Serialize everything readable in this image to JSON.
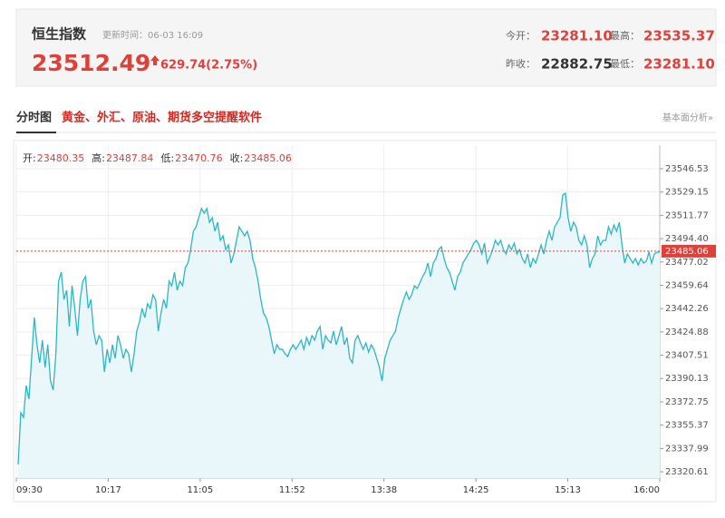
{
  "quote": {
    "name": "恒生指数",
    "update_time": "更新时间：06-03 16:09",
    "price": "23512.49",
    "change": "629.74(2.75%)",
    "open_label": "今开：",
    "open": "23281.10",
    "high_label": "最高：",
    "high": "23535.37",
    "prev_close_label": "昨收：",
    "prev_close": "22882.75",
    "low_label": "最低：",
    "low": "23281.10"
  },
  "section": {
    "title": "分时图",
    "promo": "黄金、外汇、原油、期货多空提醒软件",
    "link": "基本面分析»"
  },
  "chart_data": {
    "type": "line",
    "color": "#2bb7c6",
    "fill": "#eaf7fa",
    "grid": true,
    "ohlc": [
      {
        "label": "开:",
        "value": 23480.35
      },
      {
        "label": "高:",
        "value": 23487.84
      },
      {
        "label": "低:",
        "value": 23470.76
      },
      {
        "label": "收:",
        "value": 23485.06
      }
    ],
    "ref_color": "#e0403a",
    "x_labels": [
      "09:30",
      "10:17",
      "11:05",
      "11:52",
      "13:38",
      "14:25",
      "15:13",
      "16:00"
    ],
    "ylim": [
      23315.9,
      23564.1
    ],
    "yticks": [
      23546.53,
      23529.15,
      23511.77,
      {
        "value": 23494.4,
        "label": "23494.40"
      },
      23477.02,
      23459.64,
      23442.26,
      23424.88,
      23407.51,
      23390.13,
      23372.75,
      23355.37,
      23337.99,
      23320.61
    ],
    "values": [
      23326.1,
      23364.6,
      23361.2,
      23384.9,
      23374.8,
      23405.2,
      23435.6,
      23415.3,
      23401.8,
      23418.7,
      23398.4,
      23415.3,
      23388.3,
      23381.5,
      23408.6,
      23462.7,
      23469.4,
      23449.1,
      23455.9,
      23428.9,
      23459.3,
      23442.4,
      23422.1,
      23449.1,
      23462.7,
      23466.1,
      23442.4,
      23449.1,
      23425.5,
      23415.3,
      23422.1,
      23418.7,
      23395.0,
      23411.9,
      23401.8,
      23415.3,
      23405.2,
      23422.1,
      23415.3,
      23405.2,
      23411.9,
      23408.6,
      23395.0,
      23408.6,
      23425.5,
      23432.2,
      23442.4,
      23435.6,
      23445.8,
      23442.4,
      23452.5,
      23449.1,
      23425.5,
      23439.0,
      23449.1,
      23442.4,
      23462.7,
      23459.3,
      23469.4,
      23455.9,
      23462.7,
      23459.3,
      23472.8,
      23476.2,
      23486.3,
      23499.9,
      23503.2,
      23510.0,
      23516.8,
      23513.4,
      23516.8,
      23506.6,
      23510.0,
      23499.9,
      23506.6,
      23493.1,
      23496.5,
      23486.3,
      23489.7,
      23476.2,
      23483.0,
      23493.1,
      23503.2,
      23499.9,
      23496.5,
      23499.9,
      23493.1,
      23479.6,
      23472.8,
      23462.7,
      23449.1,
      23439.0,
      23435.6,
      23428.9,
      23418.7,
      23408.6,
      23415.3,
      23411.9,
      23411.9,
      23408.6,
      23406.5,
      23411.9,
      23415.3,
      23411.9,
      23415.3,
      23418.7,
      23411.9,
      23420.7,
      23415.3,
      23422.1,
      23418.7,
      23425.5,
      23428.9,
      23411.9,
      23422.1,
      23418.7,
      23416.7,
      23425.5,
      23415.3,
      23422.1,
      23428.9,
      23415.3,
      23420.7,
      23405.2,
      23401.8,
      23418.7,
      23422.1,
      23416.7,
      23411.9,
      23416.7,
      23409.9,
      23415.3,
      23411.9,
      23405.2,
      23398.4,
      23388.3,
      23405.2,
      23411.9,
      23418.7,
      23422.1,
      23425.5,
      23435.6,
      23442.4,
      23449.1,
      23454.6,
      23449.1,
      23452.5,
      23459.3,
      23457.3,
      23461.3,
      23466.1,
      23469.4,
      23476.2,
      23466.1,
      23476.2,
      23479.6,
      23486.3,
      23488.4,
      23479.6,
      23472.8,
      23469.4,
      23462.7,
      23455.9,
      23466.1,
      23469.4,
      23476.2,
      23479.6,
      23483.0,
      23486.3,
      23491.1,
      23493.1,
      23489.7,
      23483.0,
      23491.1,
      23476.2,
      23480.9,
      23486.3,
      23493.1,
      23489.7,
      23493.1,
      23486.3,
      23483.0,
      23489.7,
      23486.3,
      23491.1,
      23483.0,
      23486.3,
      23479.6,
      23476.2,
      23483.0,
      23472.8,
      23479.6,
      23476.2,
      23483.0,
      23489.7,
      23483.0,
      23493.1,
      23499.9,
      23493.1,
      23503.2,
      23506.6,
      23510.0,
      23526.9,
      23528.3,
      23510.0,
      23499.9,
      23506.6,
      23503.2,
      23493.1,
      23489.7,
      23496.5,
      23489.7,
      23472.8,
      23479.6,
      23483.0,
      23496.5,
      23489.7,
      23493.1,
      23493.1,
      23503.2,
      23497.8,
      23504.6,
      23499.9,
      23506.6,
      23489.7,
      23476.2,
      23483.0,
      23479.6,
      23476.2,
      23479.6,
      23474.8,
      23479.6,
      23476.2,
      23477.5,
      23484.3,
      23476.2,
      23483.0,
      23484.3,
      23484.3
    ]
  }
}
